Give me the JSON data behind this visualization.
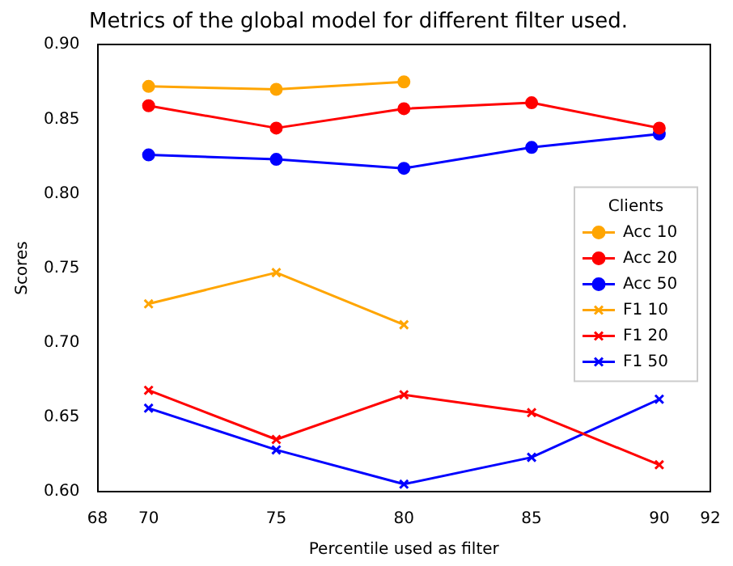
{
  "chart_data": {
    "type": "line",
    "title": "Metrics of the global model for different filter used.",
    "xlabel": "Percentile used as filter",
    "ylabel": "Scores",
    "legend_title": "Clients",
    "legend": "center right",
    "grid": false,
    "xlim": [
      68,
      92
    ],
    "xticks": [
      68,
      70,
      75,
      80,
      85,
      90,
      92
    ],
    "ylim": [
      0.6,
      0.9
    ],
    "yticks": [
      {
        "value": 0.6,
        "label": "0.60"
      },
      0.65,
      {
        "value": 0.7,
        "label": "0.70"
      },
      0.75,
      {
        "value": 0.8,
        "label": "0.80"
      },
      0.85,
      {
        "value": 0.9,
        "label": "0.90"
      }
    ],
    "series": [
      {
        "name": "Acc 10",
        "color": "#ffa500",
        "marker": "circle",
        "x": [
          70,
          75,
          80
        ],
        "values": [
          0.872,
          0.87,
          0.875
        ]
      },
      {
        "name": "Acc 20",
        "color": "#ff0000",
        "marker": "circle",
        "x": [
          70,
          75,
          80,
          85,
          90
        ],
        "values": [
          0.859,
          0.844,
          0.857,
          0.861,
          0.844
        ]
      },
      {
        "name": "Acc 50",
        "color": "#0000ff",
        "marker": "circle",
        "x": [
          70,
          75,
          80,
          85,
          90
        ],
        "values": [
          0.826,
          0.823,
          0.817,
          0.831,
          0.84
        ]
      },
      {
        "name": "F1 10",
        "color": "#ffa500",
        "marker": "cross",
        "x": [
          70,
          75,
          80
        ],
        "values": [
          0.726,
          0.747,
          0.712
        ]
      },
      {
        "name": "F1 20",
        "color": "#ff0000",
        "marker": "cross",
        "x": [
          70,
          75,
          80,
          85,
          90
        ],
        "values": [
          0.668,
          0.635,
          0.665,
          0.653,
          0.618
        ]
      },
      {
        "name": "F1 50",
        "color": "#0000ff",
        "marker": "cross",
        "x": [
          70,
          75,
          80,
          85,
          90
        ],
        "values": [
          0.656,
          0.628,
          0.605,
          0.623,
          0.662
        ]
      }
    ]
  }
}
